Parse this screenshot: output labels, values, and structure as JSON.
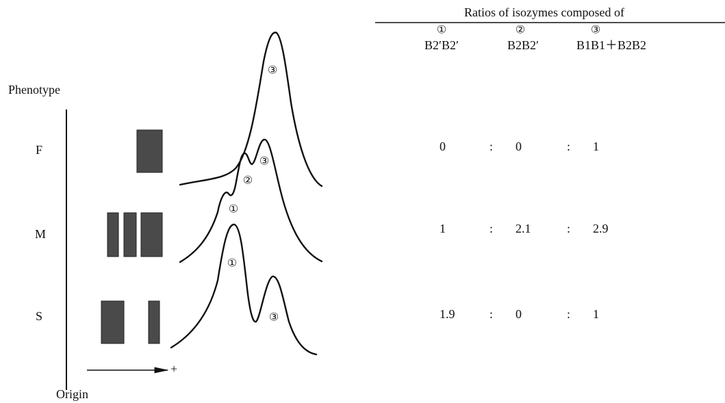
{
  "table": {
    "title": "Ratios of isozymes composed of",
    "columns": [
      {
        "number": "①",
        "label": "B2′B2′"
      },
      {
        "number": "②",
        "label": "B2B2′"
      },
      {
        "number": "③",
        "label": "B1B1＋B2B2"
      }
    ],
    "separator": ":",
    "rows": [
      {
        "phenotype": "F",
        "ratios": [
          0,
          0,
          1
        ]
      },
      {
        "phenotype": "M",
        "ratios": [
          1,
          2.1,
          2.9
        ]
      },
      {
        "phenotype": "S",
        "ratios": [
          1.9,
          0,
          1
        ]
      }
    ]
  },
  "diagram": {
    "axis_label": "Phenotype",
    "origin_label": "Origin",
    "anode_label": "+",
    "peaks": [
      [
        "③"
      ],
      [
        "①",
        "②",
        "③"
      ],
      [
        "①",
        "③"
      ]
    ]
  }
}
